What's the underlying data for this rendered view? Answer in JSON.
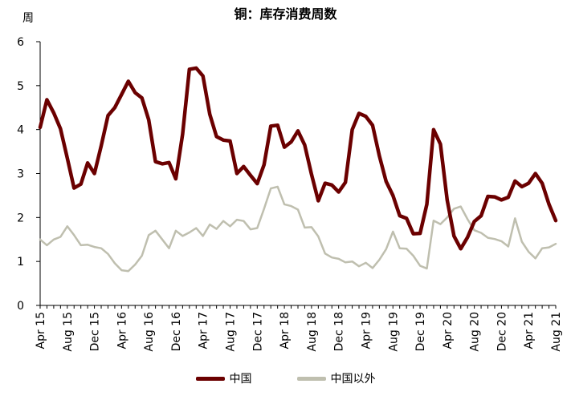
{
  "chart_data": {
    "type": "line",
    "title": "铜：库存消费周数",
    "y_unit_label": "周",
    "ylim": [
      0,
      6
    ],
    "y_ticks": [
      0,
      1,
      2,
      3,
      4,
      5,
      6
    ],
    "x_tick_labels": [
      "Apr 15",
      "Aug 15",
      "Dec 15",
      "Apr 16",
      "Aug 16",
      "Dec 16",
      "Apr 17",
      "Aug 17",
      "Dec 17",
      "Apr 18",
      "Aug 18",
      "Dec 18",
      "Apr 19",
      "Aug 19",
      "Dec 19",
      "Apr 20",
      "Aug 20",
      "Dec 20",
      "Apr 21",
      "Aug 21"
    ],
    "x_start": "2015-04",
    "x_end": "2021-08",
    "legend_position": "bottom",
    "grid": false,
    "series": [
      {
        "name": "中国",
        "color": "#6b0000",
        "values": [
          4.05,
          4.68,
          4.38,
          4.02,
          3.35,
          2.67,
          2.76,
          3.24,
          3.0,
          3.63,
          4.32,
          4.5,
          4.8,
          5.1,
          4.84,
          4.72,
          4.22,
          3.27,
          3.22,
          3.25,
          2.88,
          3.9,
          5.37,
          5.4,
          5.22,
          4.35,
          3.84,
          3.76,
          3.74,
          3.0,
          3.16,
          2.96,
          2.77,
          3.2,
          4.08,
          4.1,
          3.6,
          3.72,
          3.97,
          3.65,
          2.98,
          2.38,
          2.78,
          2.74,
          2.58,
          2.8,
          4.0,
          4.37,
          4.3,
          4.1,
          3.4,
          2.82,
          2.5,
          2.04,
          1.98,
          1.63,
          1.64,
          2.3,
          4.0,
          3.67,
          2.4,
          1.58,
          1.29,
          1.55,
          1.91,
          2.04,
          2.48,
          2.47,
          2.4,
          2.46,
          2.83,
          2.7,
          2.78,
          3.0,
          2.78,
          2.3,
          1.93
        ]
      },
      {
        "name": "中国以外",
        "color": "#bfbfaf",
        "values": [
          1.5,
          1.37,
          1.5,
          1.56,
          1.8,
          1.6,
          1.37,
          1.38,
          1.33,
          1.3,
          1.17,
          0.96,
          0.8,
          0.78,
          0.93,
          1.13,
          1.6,
          1.7,
          1.5,
          1.3,
          1.7,
          1.58,
          1.66,
          1.76,
          1.58,
          1.84,
          1.74,
          1.92,
          1.8,
          1.95,
          1.92,
          1.73,
          1.76,
          2.2,
          2.66,
          2.7,
          2.3,
          2.26,
          2.18,
          1.77,
          1.78,
          1.57,
          1.18,
          1.09,
          1.06,
          0.98,
          1.0,
          0.89,
          0.97,
          0.85,
          1.04,
          1.28,
          1.68,
          1.3,
          1.29,
          1.13,
          0.9,
          0.84,
          1.93,
          1.85,
          2.0,
          2.2,
          2.25,
          1.96,
          1.71,
          1.65,
          1.54,
          1.51,
          1.46,
          1.34,
          1.98,
          1.45,
          1.22,
          1.07,
          1.3,
          1.32,
          1.4
        ]
      }
    ]
  }
}
